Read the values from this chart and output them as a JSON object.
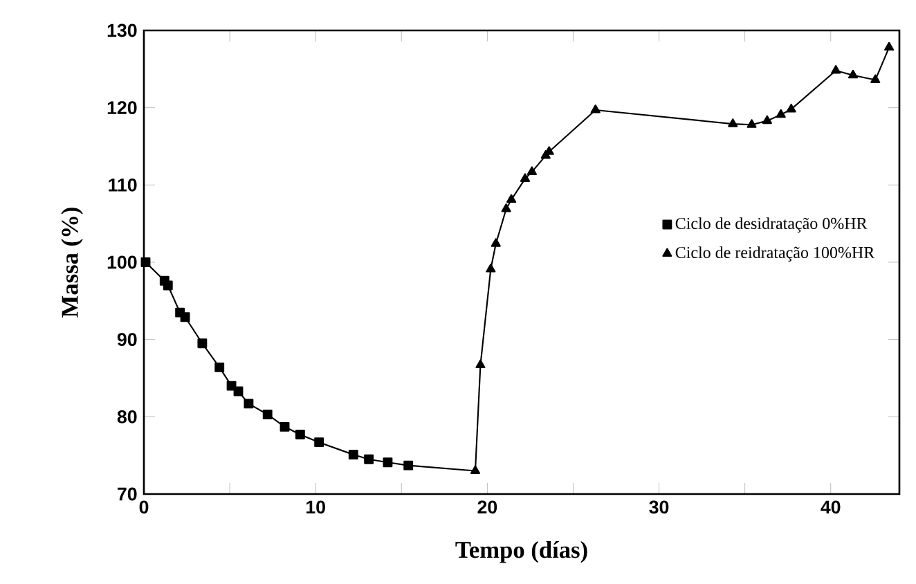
{
  "chart_data": {
    "type": "line",
    "xlabel": "Tempo (días)",
    "ylabel": "Massa (%)",
    "xlim": [
      0,
      44
    ],
    "ylim": [
      70,
      130
    ],
    "xticks": [
      0,
      {
        "value": 5,
        "label": null
      },
      10,
      {
        "value": 15,
        "label": null
      },
      20,
      {
        "value": 25,
        "label": null
      },
      30,
      {
        "value": 35,
        "label": null
      },
      40
    ],
    "yticks": [
      70,
      80,
      90,
      100,
      110,
      120,
      130
    ],
    "legend": "right",
    "grid": false,
    "series": [
      {
        "name": "Ciclo de desidratação 0%HR",
        "color": "#000000",
        "marker": "square",
        "x": [
          0.1,
          1.2,
          1.4,
          2.1,
          2.4,
          3.4,
          4.4,
          5.1,
          5.5,
          6.1,
          7.2,
          8.2,
          9.1,
          10.2,
          12.2,
          13.1,
          14.2,
          15.4,
          19.3
        ],
        "values": [
          100,
          97.6,
          97.0,
          93.5,
          92.9,
          89.5,
          86.4,
          84.0,
          83.3,
          81.7,
          80.3,
          78.7,
          77.7,
          76.7,
          75.1,
          74.5,
          74.1,
          73.7,
          73.0
        ]
      },
      {
        "name": "Ciclo de reidratação 100%HR",
        "color": "#000000",
        "marker": "triangle",
        "x": [
          19.3,
          19.6,
          20.2,
          20.5,
          21.1,
          21.4,
          22.2,
          22.6,
          23.4,
          23.6,
          26.3,
          34.3,
          35.4,
          36.3,
          37.1,
          37.7,
          40.3,
          41.3,
          42.6,
          43.4
        ],
        "values": [
          73.0,
          86.7,
          99.1,
          102.4,
          106.9,
          108.1,
          110.8,
          111.7,
          113.8,
          114.3,
          119.7,
          117.9,
          117.8,
          118.3,
          119.1,
          119.8,
          124.8,
          124.2,
          123.6,
          127.8
        ]
      }
    ]
  }
}
